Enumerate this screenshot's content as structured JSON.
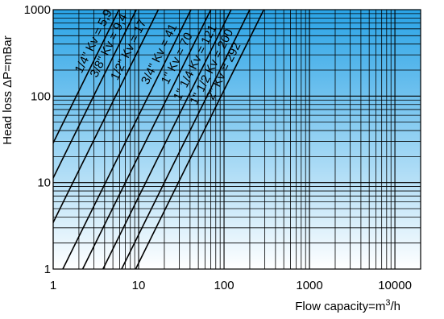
{
  "chart_data": {
    "type": "line",
    "xscale": "log",
    "yscale": "log",
    "xlim": [
      1,
      20000
    ],
    "ylim": [
      1,
      1000
    ],
    "xlabel_prefix": "Flow capacity=m",
    "xlabel_sup": "3",
    "xlabel_suffix": "/h",
    "ylabel_prefix": "Head loss ",
    "ylabel_delta": "Δ",
    "ylabel_suffix": "P=mBar",
    "x_ticks": [
      1,
      10,
      100,
      1000,
      10000
    ],
    "x_tick_labels": [
      "1",
      "10",
      "100",
      "1000",
      "10000"
    ],
    "y_ticks": [
      1,
      10,
      100,
      1000
    ],
    "y_tick_labels": [
      "1",
      "10",
      "100",
      "1000"
    ],
    "grid": true,
    "background_gradient": [
      "#29a3e6",
      "#ffffff"
    ],
    "series": [
      {
        "name": "1/4\" Kv = 5,9",
        "kv": 5.9
      },
      {
        "name": "3/8\" Kv = 9,4",
        "kv": 9.4
      },
      {
        "name": "1/2\" Kv = 17",
        "kv": 17
      },
      {
        "name": "3/4\" Kv = 41",
        "kv": 41
      },
      {
        "name": "1\" Kv = 70",
        "kv": 70
      },
      {
        "name": "1\" 1/4 Kv = 121",
        "kv": 121
      },
      {
        "name": "1\" 1/2 Kv = 200",
        "kv": 200
      },
      {
        "name": "2\" Kv = 292",
        "kv": 292
      }
    ]
  }
}
